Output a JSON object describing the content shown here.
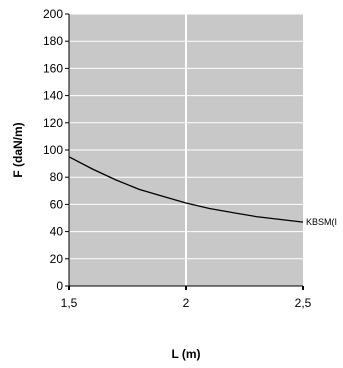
{
  "chart_data": {
    "type": "line",
    "title": "",
    "xlabel": "L (m)",
    "ylabel": "F (daN/m)",
    "xlim": [
      1.5,
      2.5
    ],
    "ylim": [
      0,
      200
    ],
    "x_ticks": [
      1.5,
      2,
      2.5
    ],
    "x_tick_labels": [
      "1,5",
      "2",
      "2,5"
    ],
    "y_ticks": [
      0,
      20,
      40,
      60,
      80,
      100,
      120,
      140,
      160,
      180,
      200
    ],
    "y_tick_labels": [
      "0",
      "20",
      "40",
      "60",
      "80",
      "100",
      "120",
      "140",
      "160",
      "180",
      "200"
    ],
    "grid": true,
    "plot_background": "#c8c8c8",
    "grid_color": "#ffffff",
    "series": [
      {
        "name": "KBSM(I",
        "color": "#000000",
        "x": [
          1.5,
          1.6,
          1.7,
          1.8,
          1.9,
          2.0,
          2.1,
          2.2,
          2.3,
          2.4,
          2.5
        ],
        "values": [
          95,
          86,
          78,
          71,
          66,
          61,
          57,
          54,
          51,
          49,
          47
        ]
      }
    ]
  }
}
